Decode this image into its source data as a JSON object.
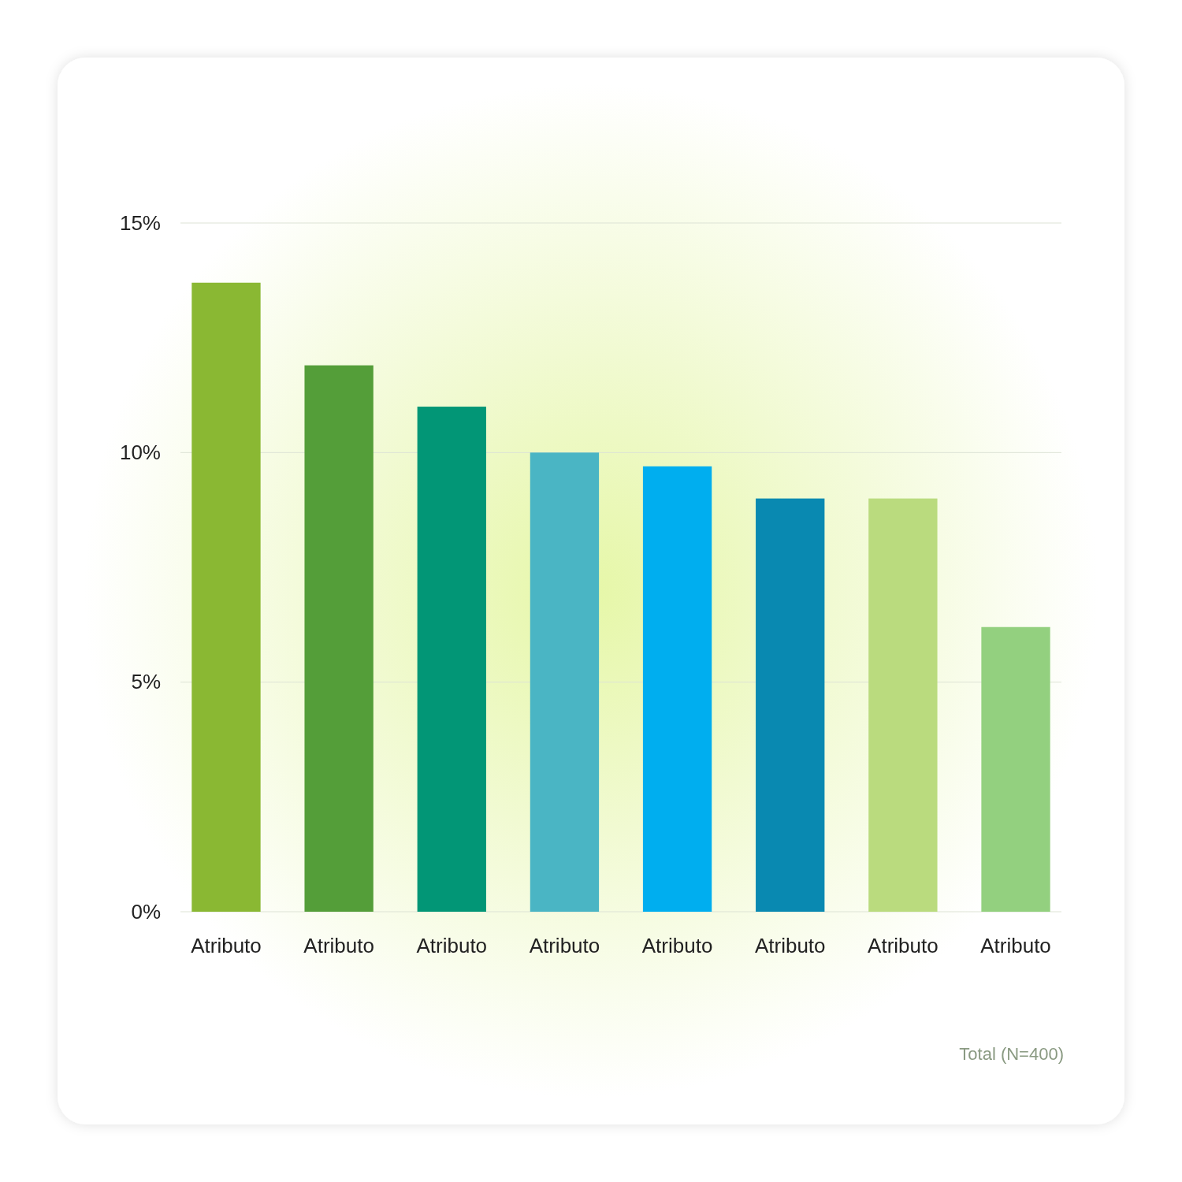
{
  "chart_data": {
    "type": "bar",
    "categories": [
      "Atributo",
      "Atributo",
      "Atributo",
      "Atributo",
      "Atributo",
      "Atributo",
      "Atributo",
      "Atributo"
    ],
    "values": [
      13.7,
      11.9,
      11.0,
      10.0,
      9.7,
      9.0,
      9.0,
      6.2
    ],
    "colors": [
      "#8ab833",
      "#549e39",
      "#029676",
      "#4ab5c4",
      "#00aeef",
      "#0989b1",
      "#badb7e",
      "#93d07f"
    ],
    "ylim": [
      0,
      15
    ],
    "yticks": [
      {
        "value": 0,
        "label": "0%"
      },
      {
        "value": 5,
        "label": "5%"
      },
      {
        "value": 10,
        "label": "10%"
      },
      {
        "value": 15,
        "label": "15%"
      }
    ],
    "grid": true,
    "annotations": [
      "Total (N=400)"
    ]
  }
}
